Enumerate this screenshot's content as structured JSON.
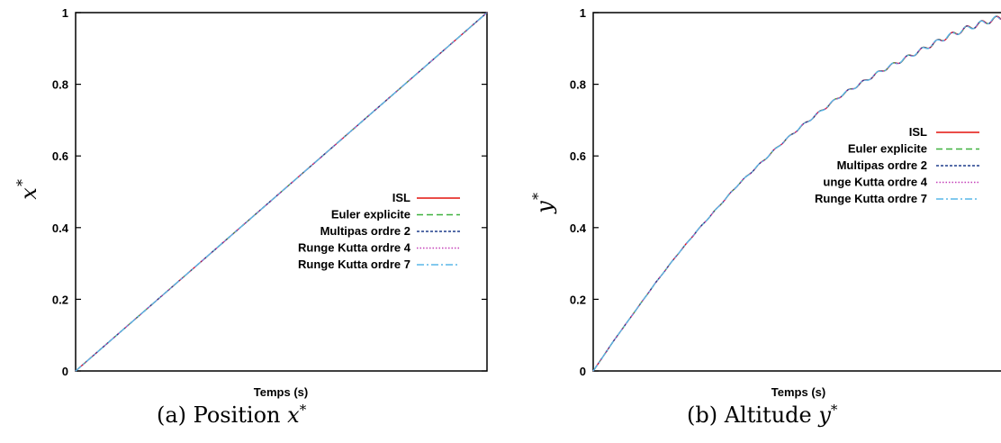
{
  "chart_data": [
    {
      "type": "line",
      "caption": "(a) Position",
      "caption_var": "x",
      "ylabel": "x",
      "xlabel": "Temps (s)",
      "ylim": [
        0,
        1
      ],
      "yticks": [
        "0",
        "0.2",
        "0.4",
        "0.6",
        "0.8",
        "1"
      ],
      "legend_position": "right",
      "series": [
        {
          "name": "ISL",
          "color": "#e3120b",
          "dash": "solid",
          "x": [
            0,
            1
          ],
          "y": [
            0,
            1
          ]
        },
        {
          "name": "Euler explicite",
          "color": "#3fb13f",
          "dash": "dashed",
          "x": [
            0,
            1
          ],
          "y": [
            0,
            1
          ]
        },
        {
          "name": "Multipas ordre 2",
          "color": "#1f3d8c",
          "dash": "dotted-dense",
          "x": [
            0,
            1
          ],
          "y": [
            0,
            1
          ]
        },
        {
          "name": "Runge Kutta ordre 4",
          "color": "#c43fb8",
          "dash": "dotted",
          "x": [
            0,
            1
          ],
          "y": [
            0,
            1
          ]
        },
        {
          "name": "Runge Kutta ordre 7",
          "color": "#58b7e8",
          "dash": "dashdot",
          "x": [
            0,
            1
          ],
          "y": [
            0,
            1
          ]
        }
      ]
    },
    {
      "type": "line",
      "caption": "(b) Altitude",
      "caption_var": "y",
      "ylabel": "y",
      "xlabel": "Temps (s)",
      "ylim": [
        0,
        1
      ],
      "yticks": [
        "0",
        "0.2",
        "0.4",
        "0.6",
        "0.8",
        "1"
      ],
      "legend_position": "right",
      "series": [
        {
          "name": "ISL",
          "color": "#e3120b",
          "dash": "solid"
        },
        {
          "name": "Euler explicite",
          "color": "#3fb13f",
          "dash": "dashed"
        },
        {
          "name": "Multipas ordre 2",
          "color": "#1f3d8c",
          "dash": "dotted-dense"
        },
        {
          "name": "unge Kutta ordre 4",
          "color": "#c43fb8",
          "dash": "dotted"
        },
        {
          "name": "Runge Kutta ordre 7",
          "color": "#58b7e8",
          "dash": "dashdot"
        }
      ],
      "curve": {
        "x": [
          0,
          0.05,
          0.1,
          0.15,
          0.2,
          0.25,
          0.3,
          0.35,
          0.4,
          0.45,
          0.5,
          0.55,
          0.6,
          0.65,
          0.7,
          0.75,
          0.8,
          0.85,
          0.9,
          0.95,
          1.0
        ],
        "y": [
          0,
          0.085,
          0.165,
          0.245,
          0.32,
          0.39,
          0.455,
          0.52,
          0.575,
          0.63,
          0.68,
          0.725,
          0.77,
          0.805,
          0.84,
          0.87,
          0.9,
          0.93,
          0.955,
          0.975,
          0.99
        ],
        "oscillation_amplitude": 0.008,
        "oscillation_cycles": 28
      }
    }
  ]
}
